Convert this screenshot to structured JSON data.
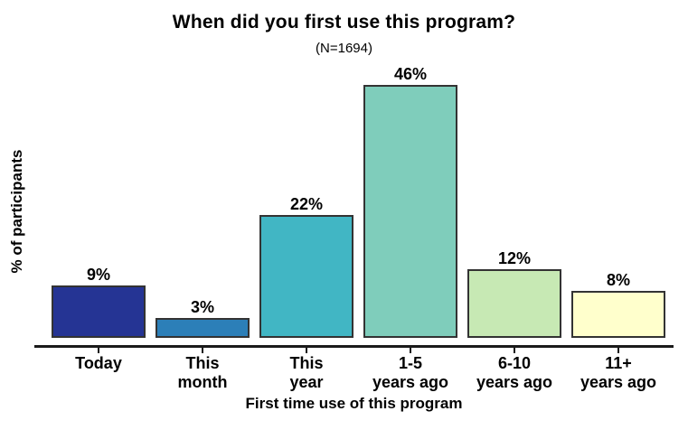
{
  "chart_data": {
    "type": "bar",
    "title": "When did you first use this program?",
    "subtitle": "(N=1694)",
    "xlabel": "First time use of this program",
    "ylabel": "% of participants",
    "categories": [
      "Today",
      "This month",
      "This year",
      "1-5 years ago",
      "6-10 years ago",
      "11+ years ago"
    ],
    "tick_label_lines": [
      [
        "Today"
      ],
      [
        "This",
        "month"
      ],
      [
        "This",
        "year"
      ],
      [
        "1-5",
        "years ago"
      ],
      [
        "6-10",
        "years ago"
      ],
      [
        "11+",
        "years ago"
      ]
    ],
    "values": [
      9,
      3,
      22,
      46,
      12,
      8
    ],
    "value_labels": [
      "9%",
      "3%",
      "22%",
      "46%",
      "12%",
      "8%"
    ],
    "bar_colors": [
      "#253494",
      "#2c7fb8",
      "#41b6c4",
      "#7fcdbb",
      "#c7e9b4",
      "#ffffcc"
    ],
    "bar_border_color": "#333333",
    "axis_color": "#1a1a1a",
    "text_color": "#000000",
    "ylim": [
      0,
      50
    ],
    "grid": false,
    "legend": null,
    "y_axis_ticks_visible": false
  }
}
